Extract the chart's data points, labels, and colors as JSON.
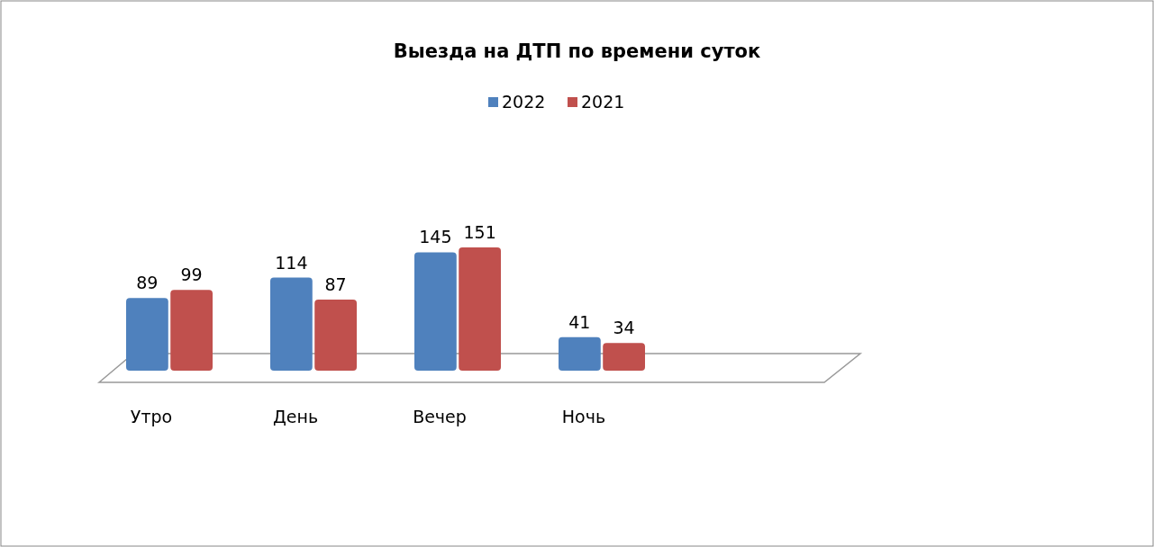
{
  "chart_data": {
    "type": "bar",
    "title": "Выезда на ДТП по времени суток",
    "categories": [
      "Утро",
      "День",
      "Вечер",
      "Ночь"
    ],
    "series": [
      {
        "name": "2022",
        "color": "#4f81bd",
        "values": [
          89,
          114,
          145,
          41
        ]
      },
      {
        "name": "2021",
        "color": "#c0504d",
        "values": [
          99,
          87,
          151,
          34
        ]
      }
    ],
    "data_labels": true,
    "legend": "top"
  }
}
